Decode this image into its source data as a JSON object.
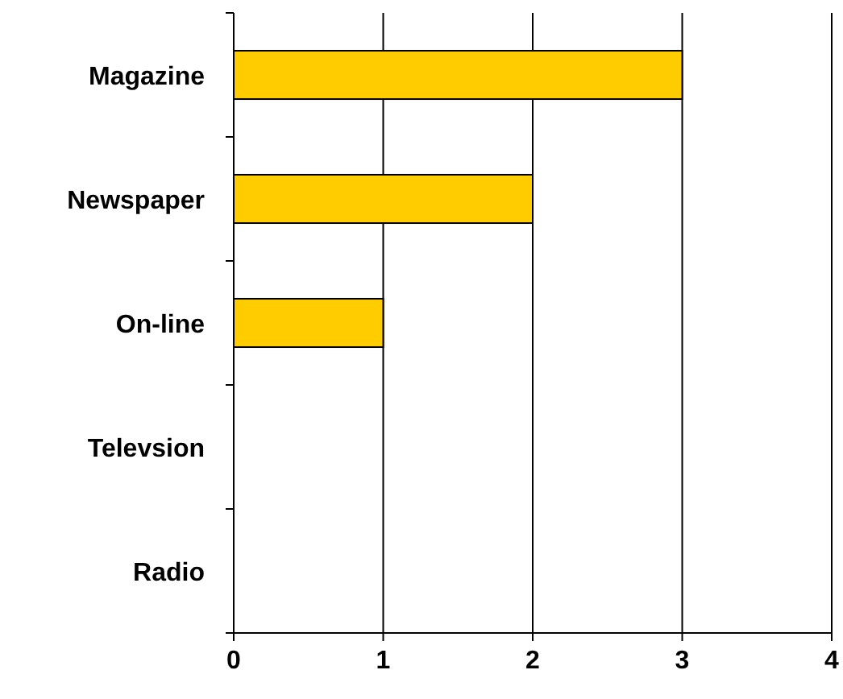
{
  "chart_data": {
    "type": "bar",
    "orientation": "horizontal",
    "categories": [
      "Magazine",
      "Newspaper",
      "On-line",
      "Televsion",
      "Radio"
    ],
    "values": [
      3,
      2,
      1,
      0,
      0
    ],
    "color": "#ffcc00",
    "xlim": [
      0,
      4
    ],
    "xticks": [
      0,
      1,
      2,
      3,
      4
    ],
    "grid": "x"
  }
}
